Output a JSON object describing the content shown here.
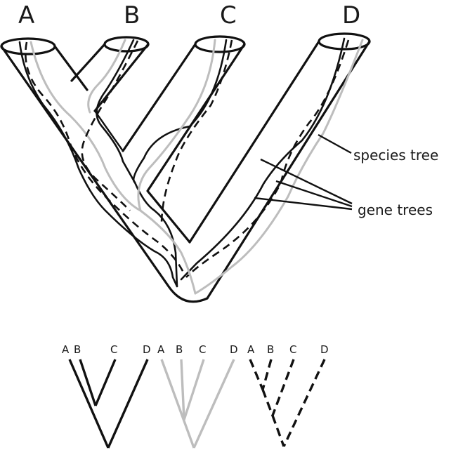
{
  "main_tree": {
    "taxa": [
      "A",
      "B",
      "C",
      "D"
    ]
  },
  "annotations": {
    "species_tree": "species tree",
    "gene_trees": "gene trees"
  },
  "small_trees": [
    {
      "style": "solid-black",
      "color": "#111111",
      "tips": [
        "A",
        "B",
        "C",
        "D"
      ]
    },
    {
      "style": "solid-gray",
      "color": "#bdbdbd",
      "tips": [
        "A",
        "B",
        "C",
        "D"
      ]
    },
    {
      "style": "dashed-black",
      "color": "#111111",
      "tips": [
        "A",
        "B",
        "C",
        "D"
      ]
    }
  ]
}
